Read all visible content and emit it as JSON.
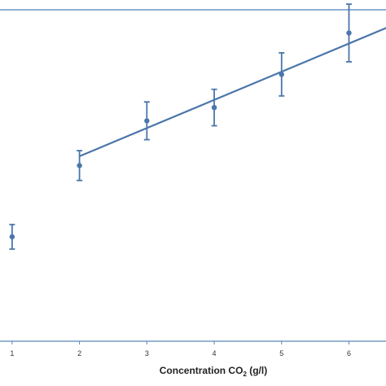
{
  "chart_data": {
    "type": "scatter",
    "xlabel_main": "Concentration CO",
    "xlabel_sub": "2",
    "xlabel_tail": " (g/l)",
    "xticks": [
      "1",
      "2",
      "3",
      "4",
      "5",
      "6"
    ],
    "x_range": [
      0.82,
      6.55
    ],
    "y_range": [
      0,
      1
    ],
    "series": [
      {
        "marker": "circle",
        "points": [
          {
            "x": 1,
            "y": 0.315,
            "err": 0.037
          },
          {
            "x": 2,
            "y": 0.53,
            "err": 0.045
          },
          {
            "x": 3,
            "y": 0.665,
            "err": 0.057
          },
          {
            "x": 4,
            "y": 0.705,
            "err": 0.055
          },
          {
            "x": 5,
            "y": 0.805,
            "err": 0.065
          },
          {
            "x": 6,
            "y": 0.93,
            "err": 0.087
          }
        ]
      }
    ],
    "fit_line": {
      "x_start": 2,
      "y_start": 0.558,
      "x_end": 6.55,
      "y_end": 0.945
    },
    "colors": {
      "series": "#4a76ab",
      "axis": "#5a86b8",
      "frame": "#6a96c8"
    },
    "grid": false,
    "legend": "none"
  }
}
